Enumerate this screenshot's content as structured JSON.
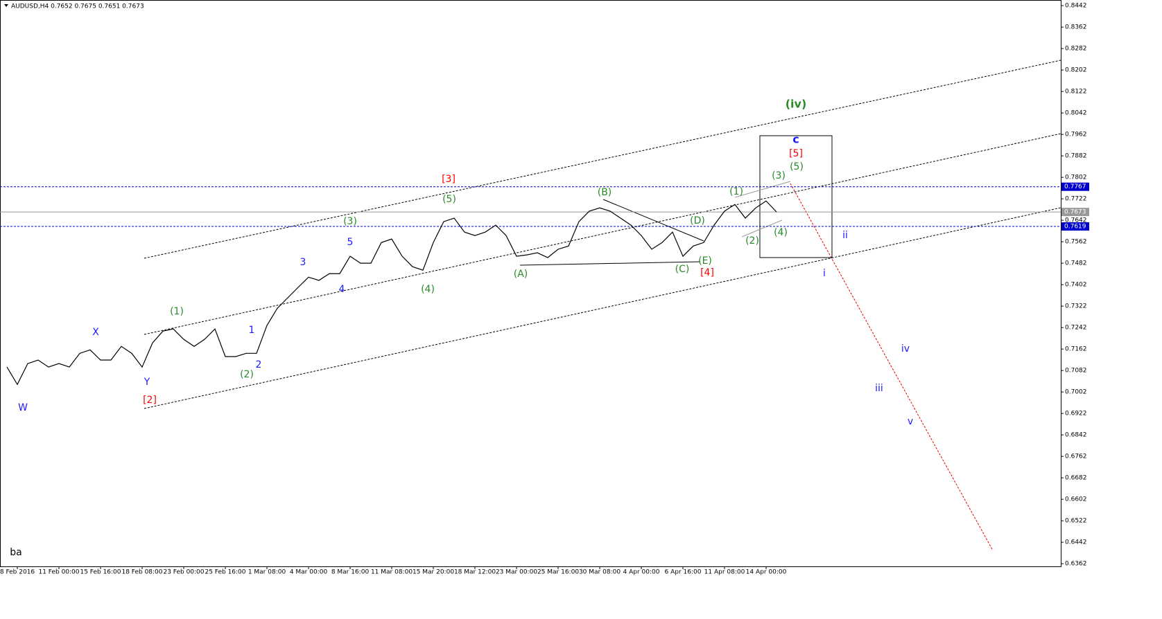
{
  "chart_data": {
    "type": "line",
    "title": "AUDUSD,H4 0.7652 0.7675 0.7651 0.7673",
    "categories": [
      null,
      "8 Feb 2016",
      null,
      null,
      null,
      "11 Feb 00:00",
      null,
      null,
      null,
      "15 Feb 16:00",
      null,
      null,
      null,
      "18 Feb 08:00",
      null,
      null,
      null,
      "23 Feb 00:00",
      null,
      null,
      null,
      "25 Feb 16:00",
      null,
      null,
      null,
      "1 Mar 08:00",
      null,
      null,
      null,
      "4 Mar 00:00",
      null,
      null,
      null,
      "8 Mar 16:00",
      null,
      null,
      null,
      "11 Mar 08:00",
      null,
      null,
      null,
      "15 Mar 20:00",
      null,
      null,
      null,
      "18 Mar 12:00",
      null,
      null,
      null,
      "23 Mar 00:00",
      null,
      null,
      null,
      "25 Mar 16:00",
      null,
      null,
      null,
      "30 Mar 08:00",
      null,
      null,
      null,
      "4 Apr 00:00",
      null,
      null,
      null,
      "6 Apr 16:00",
      null,
      null,
      null,
      "11 Apr 08:00",
      null,
      null,
      null,
      "14 Apr 00:00",
      null
    ],
    "values": [
      0.7095,
      0.703,
      0.7108,
      0.7121,
      0.7095,
      0.7108,
      0.7095,
      0.7146,
      0.7159,
      0.7121,
      0.7121,
      0.7172,
      0.7146,
      0.7095,
      0.7185,
      0.7229,
      0.7237,
      0.7198,
      0.7172,
      0.7198,
      0.7237,
      0.7134,
      0.7134,
      0.7146,
      0.7146,
      0.725,
      0.7314,
      0.7353,
      0.7392,
      0.743,
      0.7418,
      0.7443,
      0.7443,
      0.7508,
      0.7482,
      0.7482,
      0.7559,
      0.7572,
      0.7508,
      0.7469,
      0.7456,
      0.7559,
      0.7637,
      0.765,
      0.7598,
      0.7585,
      0.7598,
      0.7624,
      0.7585,
      0.7508,
      0.7513,
      0.7521,
      0.7503,
      0.7534,
      0.7546,
      0.7637,
      0.7676,
      0.7688,
      0.7676,
      0.765,
      0.7624,
      0.7585,
      0.7534,
      0.7559,
      0.7598,
      0.7508,
      0.7546,
      0.7559,
      0.7624,
      0.7676,
      0.7701,
      0.765,
      0.7688,
      0.7714,
      0.7673
    ],
    "color": "#000000",
    "ylim": [
      0.6352,
      0.8463
    ],
    "yticks": [
      0.8442,
      0.8362,
      0.8282,
      0.8202,
      0.8122,
      0.8042,
      0.7962,
      0.7882,
      0.7802,
      0.7722,
      0.7642,
      0.7562,
      0.7482,
      0.7402,
      0.7322,
      0.7242,
      0.7162,
      0.7082,
      0.7002,
      0.6922,
      0.6842,
      0.6762,
      0.6682,
      0.6602,
      0.6522,
      0.6442,
      0.6362
    ],
    "levels": [
      {
        "value": 0.7767,
        "color": "#0000cc"
      },
      {
        "value": 0.7673,
        "color": "#999999"
      },
      {
        "value": 0.7619,
        "color": "#0000cc"
      }
    ],
    "annotations": [
      {
        "text": "W",
        "color": "#1a1aff"
      },
      {
        "text": "X",
        "color": "#1a1aff"
      },
      {
        "text": "Y",
        "color": "#1a1aff"
      },
      {
        "text": "[2]",
        "color": "#ff0000"
      },
      {
        "text": "(1)",
        "color": "#2a8a2a"
      },
      {
        "text": "1",
        "color": "#1a1aff"
      },
      {
        "text": "2",
        "color": "#1a1aff"
      },
      {
        "text": "(2)",
        "color": "#2a8a2a"
      },
      {
        "text": "3",
        "color": "#1a1aff"
      },
      {
        "text": "4",
        "color": "#1a1aff"
      },
      {
        "text": "5",
        "color": "#1a1aff"
      },
      {
        "text": "(3)",
        "color": "#2a8a2a"
      },
      {
        "text": "(4)",
        "color": "#2a8a2a"
      },
      {
        "text": "(5)",
        "color": "#2a8a2a"
      },
      {
        "text": "[3]",
        "color": "#ff0000"
      },
      {
        "text": "(A)",
        "color": "#2a8a2a"
      },
      {
        "text": "(B)",
        "color": "#2a8a2a"
      },
      {
        "text": "(C)",
        "color": "#2a8a2a"
      },
      {
        "text": "(D)",
        "color": "#2a8a2a"
      },
      {
        "text": "(E)",
        "color": "#2a8a2a"
      },
      {
        "text": "[4]",
        "color": "#ff0000"
      },
      {
        "text": "(1)",
        "color": "#2a8a2a"
      },
      {
        "text": "(2)",
        "color": "#2a8a2a"
      },
      {
        "text": "(3)",
        "color": "#2a8a2a"
      },
      {
        "text": "(4)",
        "color": "#2a8a2a"
      },
      {
        "text": "(5)",
        "color": "#2a8a2a"
      },
      {
        "text": "[5]",
        "color": "#ff0000"
      },
      {
        "text": "c",
        "color": "#1a1aff"
      },
      {
        "text": "(iv)",
        "color": "#2a8a2a"
      },
      {
        "text": "ii",
        "color": "#1a1aff"
      },
      {
        "text": "i",
        "color": "#1a1aff"
      },
      {
        "text": "iv",
        "color": "#1a1aff"
      },
      {
        "text": "iii",
        "color": "#1a1aff"
      },
      {
        "text": "v",
        "color": "#1a1aff"
      },
      {
        "text": "ba",
        "color": "#000000"
      }
    ]
  }
}
